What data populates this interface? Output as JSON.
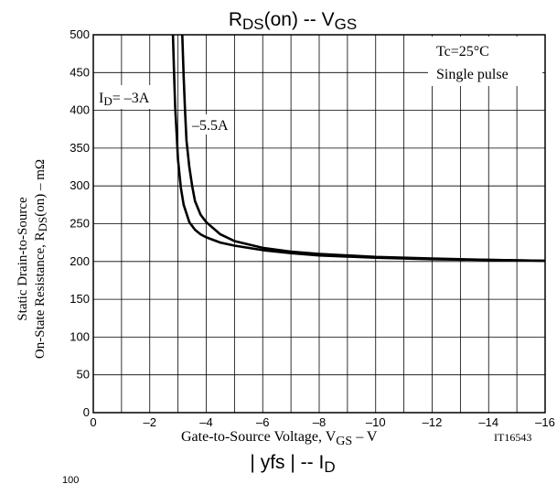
{
  "chart_data": {
    "type": "line",
    "title": {
      "main": "R",
      "sub": "DS",
      "mid": "(on)  --  V",
      "sub2": "GS"
    },
    "next_title": {
      "main": "| yfs |  --  I",
      "sub": "D"
    },
    "next_axis_tick": "100",
    "xlabel": {
      "text": "Gate-to-Source Voltage, V",
      "sub": "GS",
      "tail": "  –  V"
    },
    "ylabel": {
      "line1": "Static Drain-to-Source",
      "line2_main": "On-State Resistance, R",
      "line2_sub": "DS",
      "line2_tail": "(on)  –  mΩ"
    },
    "figure_id": "IT16543",
    "conditions": [
      "Tc=25°C",
      "Single pulse"
    ],
    "xlim": [
      0,
      -16
    ],
    "ylim": [
      0,
      500
    ],
    "x_ticks": [
      0,
      -2,
      -4,
      -6,
      -8,
      -10,
      -12,
      -14,
      -16
    ],
    "x_tick_labels": [
      "0",
      "–2",
      "–4",
      "–6",
      "–8",
      "–10",
      "–12",
      "–14",
      "–16"
    ],
    "y_ticks": [
      0,
      50,
      100,
      150,
      200,
      250,
      300,
      350,
      400,
      450,
      500
    ],
    "y_tick_labels": [
      "0",
      "50",
      "100",
      "150",
      "200",
      "250",
      "300",
      "350",
      "400",
      "450",
      "500"
    ],
    "grid": true,
    "series": [
      {
        "name": "ID= –3A",
        "label_main": "I",
        "label_sub": "D",
        "label_tail": "= –3A",
        "x": [
          -2.82,
          -2.86,
          -2.9,
          -2.95,
          -3.0,
          -3.1,
          -3.2,
          -3.4,
          -3.6,
          -3.8,
          -4.0,
          -4.5,
          -5.0,
          -6.0,
          -7.0,
          -8.0,
          -10.0,
          -12.0,
          -14.0,
          -16.0
        ],
        "y": [
          500,
          450,
          405,
          370,
          335,
          298,
          275,
          252,
          242,
          236,
          232,
          225,
          221,
          215,
          211,
          208,
          205,
          203,
          202,
          201
        ]
      },
      {
        "name": "–5.5A",
        "label_main": "–5.5A",
        "x": [
          -3.15,
          -3.2,
          -3.25,
          -3.3,
          -3.4,
          -3.5,
          -3.6,
          -3.8,
          -4.0,
          -4.5,
          -5.0,
          -6.0,
          -7.0,
          -8.0,
          -10.0,
          -12.0,
          -14.0,
          -16.0
        ],
        "y": [
          500,
          445,
          400,
          360,
          325,
          300,
          280,
          262,
          252,
          236,
          227,
          218,
          213,
          210,
          206,
          204,
          202,
          201
        ]
      }
    ]
  }
}
